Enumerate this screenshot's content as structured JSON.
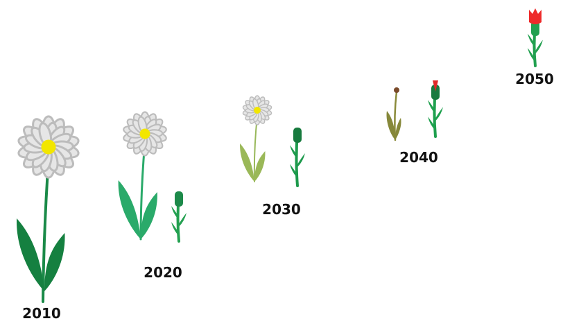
{
  "timeline": {
    "labels": [
      "2010",
      "2020",
      "2030",
      "2040",
      "2050"
    ]
  }
}
